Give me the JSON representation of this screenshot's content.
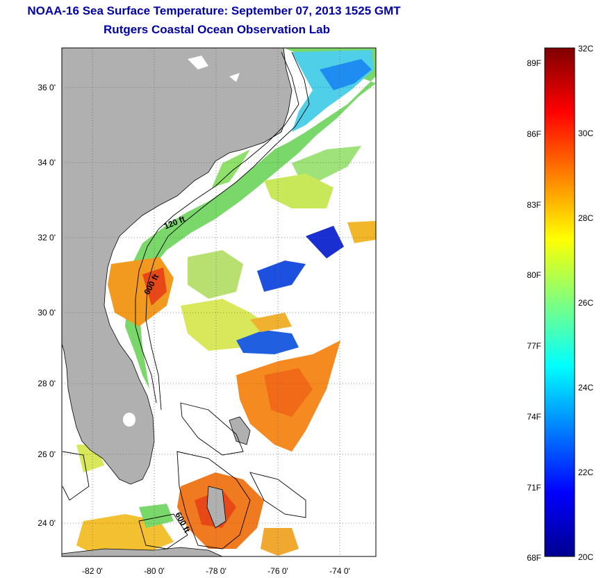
{
  "title": {
    "line1": "NOAA-16 Sea Surface Temperature:  September 07, 2013 1525 GMT",
    "line2": "Rutgers Coastal Ocean Observation Lab"
  },
  "map": {
    "lat_labels": [
      "36 0'",
      "34 0'",
      "32 0'",
      "30 0'",
      "28 0'",
      "26 0'",
      "24 0'"
    ],
    "lon_labels": [
      "-82 0'",
      "-80 0'",
      "-78 0'",
      "-76 0'",
      "-74 0'"
    ],
    "lat_values": [
      36,
      34,
      32,
      30,
      28,
      26,
      24
    ],
    "lon_values": [
      -82,
      -80,
      -78,
      -76,
      -74
    ],
    "lat_range": [
      23,
      37.1
    ],
    "lon_range": [
      -83,
      -73
    ],
    "isobath_labels": [
      "120 ft",
      "600 ft",
      "600 ft"
    ],
    "land_color": "#b0b0b0",
    "grid": "dotted"
  },
  "colorbar": {
    "fahrenheit_labels": [
      "89F",
      "86F",
      "83F",
      "80F",
      "77F",
      "74F",
      "71F",
      "68F"
    ],
    "celsius_labels": [
      "32C",
      "30C",
      "28C",
      "26C",
      "24C",
      "22C",
      "20C"
    ],
    "fahrenheit_values": [
      89,
      86,
      83,
      80,
      77,
      74,
      71,
      68
    ],
    "celsius_values": [
      32,
      30,
      28,
      26,
      24,
      22,
      20
    ],
    "range_c": [
      20,
      32
    ]
  }
}
